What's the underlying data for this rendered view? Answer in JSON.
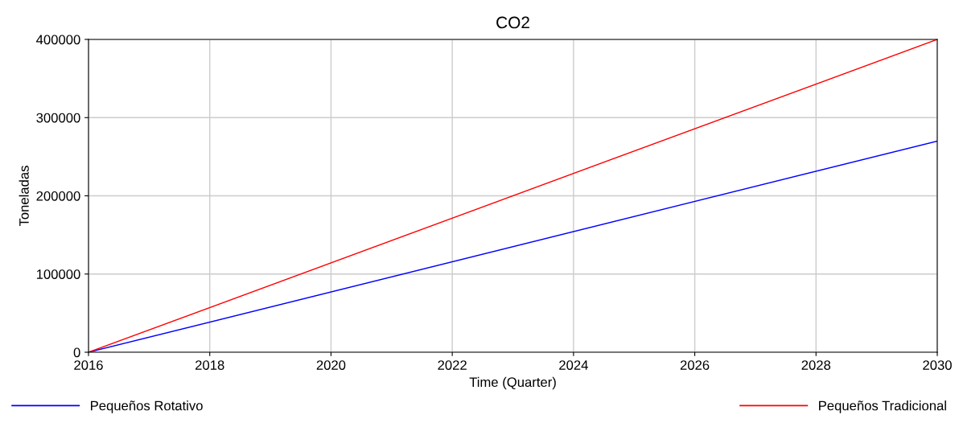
{
  "chart_data": {
    "type": "line",
    "title": "CO2",
    "xlabel": "Time (Quarter)",
    "ylabel": "Toneladas",
    "x": [
      2016,
      2030
    ],
    "series": [
      {
        "name": "Pequeños Rotativo",
        "color": "#0000ff",
        "values": [
          0,
          270000
        ]
      },
      {
        "name": "Pequeños Tradicional",
        "color": "#ff0000",
        "values": [
          0,
          400000
        ]
      }
    ],
    "xlim": [
      2016,
      2030
    ],
    "xticks": [
      2016,
      2018,
      2020,
      2022,
      2024,
      2026,
      2028,
      2030
    ],
    "ylim": [
      0,
      400000
    ],
    "yticks": [
      0,
      100000,
      200000,
      300000,
      400000
    ],
    "grid": true,
    "legend": "bottom",
    "marker": "none",
    "line_style": "solid"
  }
}
